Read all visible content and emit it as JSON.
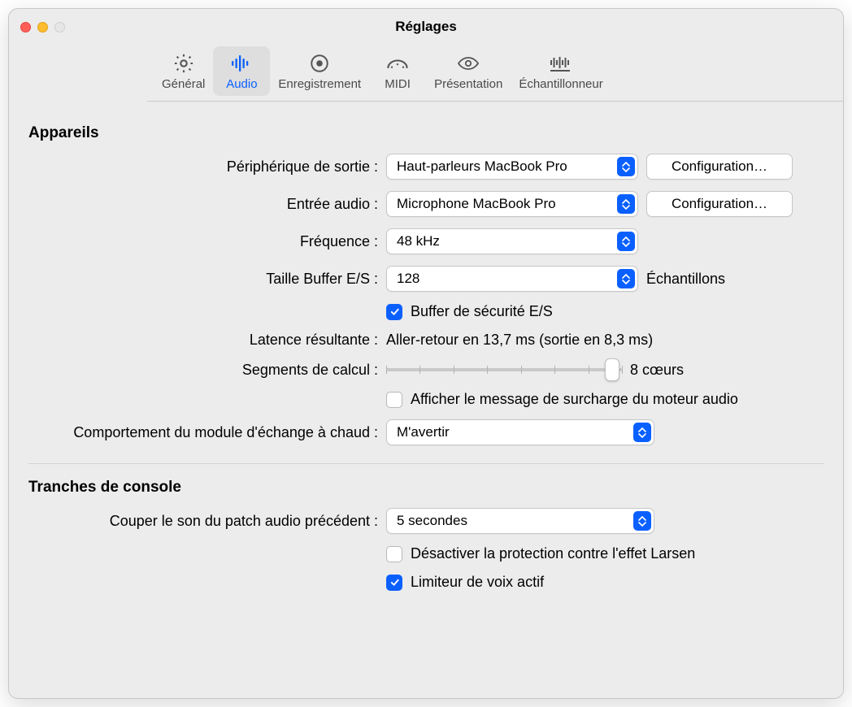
{
  "window": {
    "title": "Réglages"
  },
  "tabs": {
    "general": "Général",
    "audio": "Audio",
    "recording": "Enregistrement",
    "midi": "MIDI",
    "display": "Présentation",
    "sampler": "Échantillonneur",
    "selected": "audio"
  },
  "sections": {
    "devices": "Appareils",
    "channelstrips": "Tranches de console"
  },
  "labels": {
    "output_device": "Périphérique de sortie :",
    "audio_input": "Entrée audio :",
    "sample_rate": "Fréquence :",
    "io_buffer": "Taille Buffer E/S :",
    "samples_unit": "Échantillons",
    "io_safety": "Buffer de sécurité E/S",
    "resulting_latency": "Latence résultante :",
    "processing_threads": "Segments de calcul :",
    "cores_suffix": "8 cœurs",
    "show_overload": "Afficher le message de surcharge du moteur audio",
    "hotplug": "Comportement du module d'échange à chaud :",
    "silence_previous": "Couper le son du patch audio précédent :",
    "feedback_protect": "Désactiver la protection contre l'effet Larsen",
    "voice_limiter": "Limiteur de voix actif",
    "configure": "Configuration…"
  },
  "values": {
    "output_device": "Haut-parleurs MacBook Pro",
    "audio_input": "Microphone MacBook Pro",
    "sample_rate": "48 kHz",
    "io_buffer": "128",
    "latency": "Aller-retour en 13,7 ms (sortie en 8,3 ms)",
    "hotplug": "M'avertir",
    "silence_previous": "5 secondes"
  },
  "checks": {
    "io_safety": true,
    "show_overload": false,
    "feedback_protect": false,
    "voice_limiter": true
  },
  "slider": {
    "ticks": 8,
    "position_pct": 96
  },
  "colors": {
    "accent": "#0a60ff",
    "window_bg": "#ececec",
    "popup_bg": "#ffffff",
    "border": "#c6c6c6",
    "divider": "#d3d3d3"
  }
}
